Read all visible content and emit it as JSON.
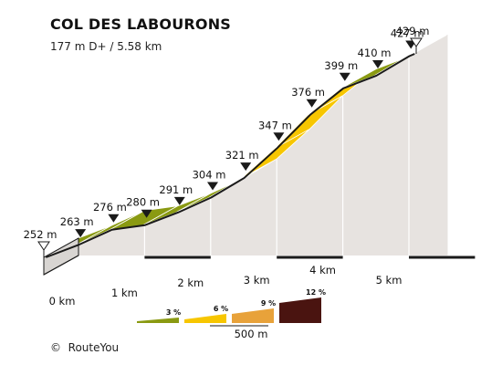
{
  "chart_data": {
    "type": "area",
    "title": "COL DES LABOURONS",
    "subtitle": "177 m D+ / 5.58 km",
    "xlabel": "",
    "ylabel": "",
    "distance_km": 5.58,
    "x_ticks": [
      {
        "km": 0,
        "label": "0 km"
      },
      {
        "km": 1,
        "label": "1 km"
      },
      {
        "km": 2,
        "label": "2 km"
      },
      {
        "km": 3,
        "label": "3 km"
      },
      {
        "km": 4,
        "label": "4 km"
      },
      {
        "km": 5,
        "label": "5 km"
      }
    ],
    "points": [
      {
        "km": 0.0,
        "elev": 252,
        "label": "252 m",
        "marker": "start"
      },
      {
        "km": 0.5,
        "elev": 263,
        "label": "263 m",
        "marker": "filled"
      },
      {
        "km": 1.0,
        "elev": 276,
        "label": "276 m",
        "marker": "filled"
      },
      {
        "km": 1.5,
        "elev": 280,
        "label": "280 m",
        "marker": "filled"
      },
      {
        "km": 2.0,
        "elev": 291,
        "label": "291 m",
        "marker": "filled"
      },
      {
        "km": 2.5,
        "elev": 304,
        "label": "304 m",
        "marker": "filled"
      },
      {
        "km": 3.0,
        "elev": 321,
        "label": "321 m",
        "marker": "filled"
      },
      {
        "km": 3.5,
        "elev": 347,
        "label": "347 m",
        "marker": "filled"
      },
      {
        "km": 4.0,
        "elev": 376,
        "label": "376 m",
        "marker": "filled"
      },
      {
        "km": 4.5,
        "elev": 399,
        "label": "399 m",
        "marker": "filled"
      },
      {
        "km": 5.0,
        "elev": 410,
        "label": "410 m",
        "marker": "filled"
      },
      {
        "km": 5.5,
        "elev": 427,
        "label": "427 m",
        "marker": "filled"
      },
      {
        "km": 5.58,
        "elev": 429,
        "label": "429 m",
        "marker": "end"
      }
    ],
    "legend": {
      "scale_label": "500 m",
      "items": [
        {
          "label": "3 %",
          "color": "#8a9a12"
        },
        {
          "label": "6 %",
          "color": "#f7c600"
        },
        {
          "label": "9 %",
          "color": "#d63a2a"
        },
        {
          "label": "12 %",
          "color": "#4a1410"
        }
      ]
    },
    "colors": {
      "gentle": "#8a9a12",
      "moderate": "#f7c600",
      "side": "#e7e3e0",
      "base": "#d8d5d2",
      "outline": "#1a1a1a",
      "dashes": "#1a1a1a",
      "scale_orange": "#e8a23a"
    }
  },
  "footer": {
    "credit": "RouteYou"
  }
}
